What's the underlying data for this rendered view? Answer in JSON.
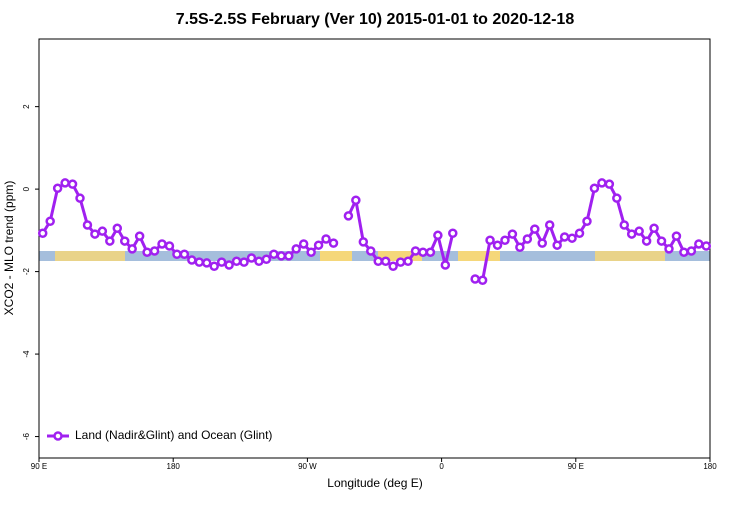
{
  "chart_data": {
    "type": "line",
    "title": "7.5S-2.5S February (Ver 10)   2015-01-01 to 2020-12-18",
    "xlabel": "Longitude (deg E)",
    "ylabel": "XCO2 - MLO trend (ppm)",
    "xlim": [
      90,
      540
    ],
    "ylim": [
      -6.52,
      3.64
    ],
    "xticks": [
      {
        "value": 90,
        "label": "90 E"
      },
      180,
      {
        "value": 270,
        "label": "90 W"
      },
      {
        "value": 360,
        "label": "0"
      },
      {
        "value": 450,
        "label": "90 E"
      },
      {
        "value": 540,
        "label": "180"
      }
    ],
    "yticks": [
      2,
      0,
      -2,
      -4,
      -6
    ],
    "legend": "bottom-left",
    "x": [
      92.5,
      97.5,
      102.5,
      107.5,
      112.5,
      117.5,
      122.5,
      127.5,
      132.5,
      137.5,
      142.5,
      147.5,
      152.5,
      157.5,
      162.5,
      167.5,
      172.5,
      177.5,
      182.5,
      187.5,
      192.5,
      197.5,
      202.5,
      207.5,
      212.5,
      217.5,
      222.5,
      227.5,
      232.5,
      237.5,
      242.5,
      247.5,
      252.5,
      257.5,
      262.5,
      267.5,
      272.5,
      277.5,
      282.5,
      287.5,
      292.5,
      297.5,
      302.5,
      307.5,
      312.5,
      317.5,
      322.5,
      327.5,
      332.5,
      337.5,
      342.5,
      347.5,
      352.5,
      357.5,
      362.5,
      367.5,
      372.5,
      377.5,
      382.5,
      387.5,
      392.5,
      397.5,
      402.5,
      407.5,
      412.5,
      417.5,
      422.5,
      427.5,
      432.5,
      437.5,
      442.5,
      447.5,
      452.5,
      457.5,
      462.5,
      467.5,
      472.5,
      477.5,
      482.5,
      487.5,
      492.5,
      497.5,
      502.5,
      507.5,
      512.5,
      517.5,
      522.5,
      527.5,
      532.5,
      537.5
    ],
    "series": [
      {
        "name": "Land (Nadir&Glint) and Ocean (Glint)",
        "color": "#a020f0",
        "values": [
          -1.07,
          -0.78,
          0.02,
          0.15,
          0.12,
          -0.22,
          -0.87,
          -1.09,
          -1.02,
          -1.26,
          -0.95,
          -1.26,
          -1.45,
          -1.14,
          -1.53,
          -1.5,
          -1.33,
          -1.38,
          -1.58,
          -1.58,
          -1.72,
          -1.77,
          -1.79,
          -1.87,
          -1.77,
          -1.84,
          -1.75,
          -1.77,
          -1.67,
          -1.75,
          -1.7,
          -1.58,
          -1.62,
          -1.62,
          -1.45,
          -1.33,
          -1.53,
          -1.36,
          -1.21,
          -1.31,
          null,
          -0.65,
          -0.27,
          -1.28,
          -1.5,
          -1.75,
          -1.75,
          -1.87,
          -1.77,
          -1.75,
          -1.5,
          -1.53,
          -1.53,
          -1.12,
          -1.84,
          -1.07,
          null,
          null,
          -2.18,
          -2.21,
          -1.24,
          -1.36,
          -1.24,
          -1.09,
          -1.41,
          -1.21,
          -0.97,
          -1.31,
          -0.87,
          -1.36,
          -1.16,
          -1.19,
          -1.07,
          -0.78,
          0.02,
          0.15,
          0.12,
          -0.22,
          -0.87,
          -1.09,
          -1.02,
          -1.26,
          -0.95,
          -1.26,
          -1.45,
          -1.14,
          -1.53,
          -1.5,
          -1.33,
          -1.38
        ]
      }
    ]
  }
}
